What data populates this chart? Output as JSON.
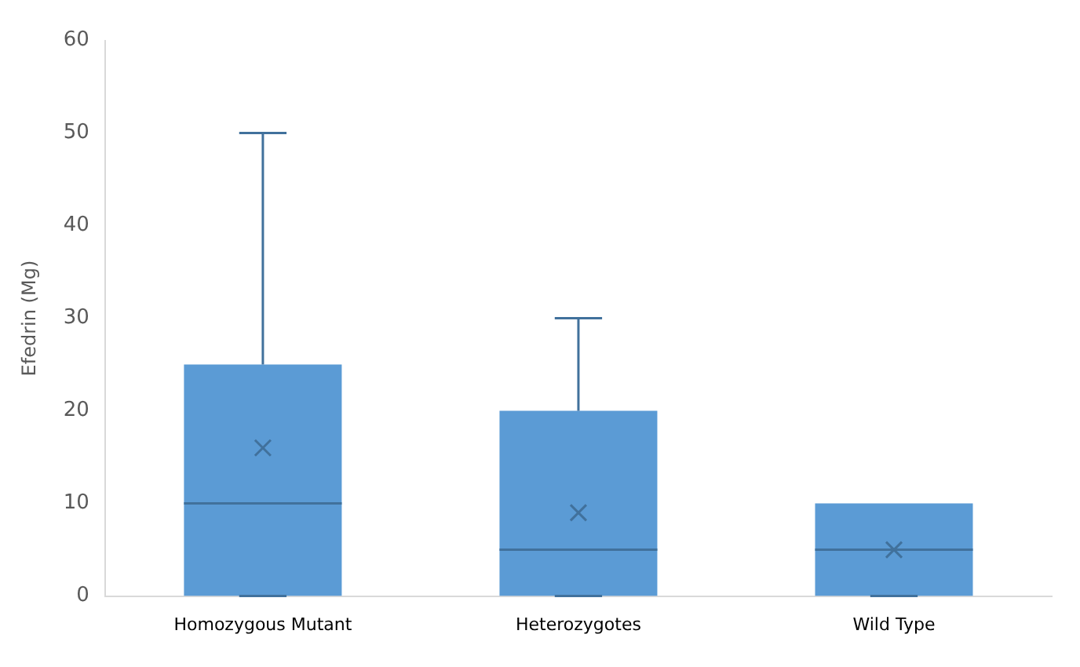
{
  "chart_data": {
    "type": "box",
    "ylabel": "Efedrin (Mg)",
    "categories": [
      "Homozygous Mutant",
      "Heterozygotes",
      "Wild Type"
    ],
    "color": "#5b9bd5",
    "boxes": [
      {
        "low": 0,
        "q1": 0,
        "median": 10,
        "q3": 25,
        "high": 50,
        "mean": 16
      },
      {
        "low": 0,
        "q1": 0,
        "median": 5,
        "q3": 20,
        "high": 30,
        "mean": 9
      },
      {
        "low": 0,
        "q1": 0,
        "median": 5,
        "q3": 10,
        "high": 10,
        "mean": 5
      }
    ],
    "ylim": [
      0,
      60
    ],
    "yticks": [
      0,
      10,
      20,
      30,
      40,
      50,
      60
    ],
    "grid": false,
    "legend": false
  }
}
